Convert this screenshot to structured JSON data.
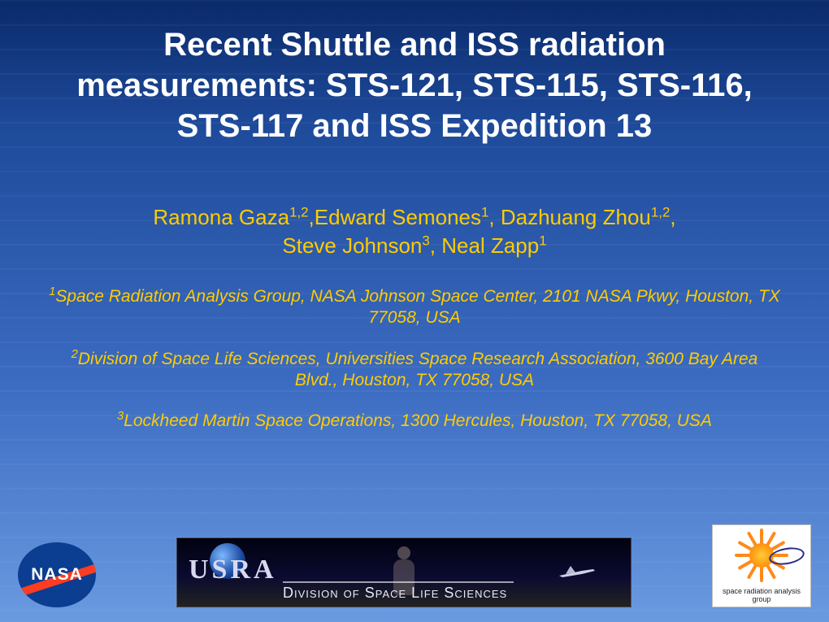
{
  "title": "Recent Shuttle and ISS radiation measurements: STS-121, STS-115, STS-116, STS-117 and ISS Expedition 13",
  "authors_html": "Ramona Gaza<sup>1,2</sup>,Edward Semones<sup>1</sup>, Dazhuang Zhou<sup>1,2</sup>,<br>Steve Johnson<sup>3</sup>, Neal Zapp<sup>1</sup>",
  "affiliations": [
    {
      "sup": "1",
      "text": "Space Radiation Analysis Group, NASA Johnson Space Center, 2101 NASA Pkwy, Houston, TX 77058, USA"
    },
    {
      "sup": "2",
      "text": "Division of Space Life Sciences, Universities Space Research Association, 3600 Bay Area Blvd., Houston, TX 77058, USA"
    },
    {
      "sup": "3",
      "text": "Lockheed Martin Space Operations, 1300 Hercules, Houston, TX 77058, USA"
    }
  ],
  "logos": {
    "nasa": "NASA",
    "usra_main": "USRA",
    "usra_sub": "Division of Space Life Sciences",
    "srag": "space radiation analysis group"
  },
  "colors": {
    "title": "#ffffff",
    "accent": "#ffcc00",
    "bg_top": "#0a2a6a",
    "bg_bottom": "#6a9ae0"
  }
}
